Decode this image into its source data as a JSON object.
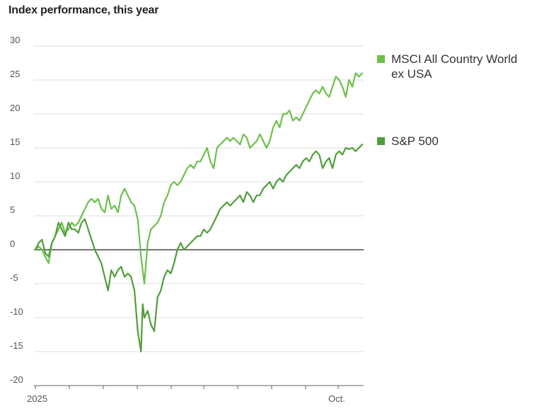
{
  "chart_data": {
    "type": "line",
    "title": "Index performance, this year",
    "xlabel": "",
    "ylabel": "",
    "ylim": [
      -20,
      30
    ],
    "yticks": [
      30,
      25,
      20,
      15,
      10,
      5,
      0,
      -5,
      -10,
      -15,
      -20
    ],
    "x_tick_labels": [
      "2025",
      "Oct."
    ],
    "grid": "horizontal",
    "legend_position": "right",
    "colors": {
      "msci": "#6cc04a",
      "sp500": "#4f9e3a",
      "zero_line": "#222222",
      "grid": "#dddddd"
    },
    "series": [
      {
        "name": "MSCI All Country World ex USA",
        "label_lines": [
          "MSCI All Country World",
          "ex USA"
        ],
        "color": "#6cc04a",
        "points": [
          [
            0,
            0
          ],
          [
            2,
            0.5
          ],
          [
            4,
            0
          ],
          [
            6,
            -1
          ],
          [
            8,
            -2
          ],
          [
            10,
            1
          ],
          [
            12,
            2
          ],
          [
            14,
            3
          ],
          [
            16,
            4
          ],
          [
            18,
            2.5
          ],
          [
            20,
            3
          ],
          [
            22,
            4
          ],
          [
            24,
            3.5
          ],
          [
            26,
            4
          ],
          [
            28,
            5
          ],
          [
            30,
            6
          ],
          [
            32,
            7
          ],
          [
            34,
            7.5
          ],
          [
            36,
            7
          ],
          [
            38,
            7.5
          ],
          [
            40,
            6
          ],
          [
            42,
            5.5
          ],
          [
            44,
            8
          ],
          [
            46,
            6
          ],
          [
            48,
            6.5
          ],
          [
            50,
            5.5
          ],
          [
            52,
            8
          ],
          [
            54,
            9
          ],
          [
            56,
            8
          ],
          [
            58,
            7
          ],
          [
            60,
            6.5
          ],
          [
            62,
            4.5
          ],
          [
            64,
            -1
          ],
          [
            65,
            -3
          ],
          [
            66,
            -5
          ],
          [
            68,
            1
          ],
          [
            70,
            3
          ],
          [
            72,
            3.5
          ],
          [
            74,
            4
          ],
          [
            76,
            5
          ],
          [
            78,
            7
          ],
          [
            80,
            8
          ],
          [
            82,
            9.5
          ],
          [
            84,
            10
          ],
          [
            86,
            9.5
          ],
          [
            88,
            10
          ],
          [
            90,
            11
          ],
          [
            92,
            12
          ],
          [
            94,
            12.5
          ],
          [
            96,
            12
          ],
          [
            98,
            13
          ],
          [
            100,
            13
          ],
          [
            102,
            14
          ],
          [
            104,
            15
          ],
          [
            106,
            13
          ],
          [
            108,
            12
          ],
          [
            110,
            15
          ],
          [
            112,
            15.5
          ],
          [
            114,
            16
          ],
          [
            116,
            16.5
          ],
          [
            118,
            16
          ],
          [
            120,
            16.5
          ],
          [
            122,
            16
          ],
          [
            124,
            15.5
          ],
          [
            126,
            17
          ],
          [
            128,
            16.5
          ],
          [
            130,
            15
          ],
          [
            132,
            15.5
          ],
          [
            134,
            16
          ],
          [
            136,
            17
          ],
          [
            138,
            16
          ],
          [
            140,
            15
          ],
          [
            142,
            16
          ],
          [
            144,
            18
          ],
          [
            146,
            19
          ],
          [
            148,
            18
          ],
          [
            150,
            20
          ],
          [
            152,
            20
          ],
          [
            154,
            20.5
          ],
          [
            156,
            19
          ],
          [
            158,
            19.5
          ],
          [
            160,
            19
          ],
          [
            162,
            20
          ],
          [
            164,
            21
          ],
          [
            166,
            22
          ],
          [
            168,
            23
          ],
          [
            170,
            23.5
          ],
          [
            172,
            23
          ],
          [
            174,
            24
          ],
          [
            176,
            23
          ],
          [
            178,
            22.5
          ],
          [
            180,
            24
          ],
          [
            182,
            25.5
          ],
          [
            184,
            25
          ],
          [
            186,
            24
          ],
          [
            188,
            22.5
          ],
          [
            190,
            25
          ],
          [
            192,
            24
          ],
          [
            194,
            26
          ],
          [
            196,
            25.5
          ],
          [
            198,
            26
          ]
        ]
      },
      {
        "name": "S&P 500",
        "label_lines": [
          "S&P 500"
        ],
        "color": "#4f9e3a",
        "points": [
          [
            0,
            0
          ],
          [
            2,
            1
          ],
          [
            4,
            1.5
          ],
          [
            6,
            -0.5
          ],
          [
            8,
            -1
          ],
          [
            10,
            1
          ],
          [
            12,
            2
          ],
          [
            14,
            4
          ],
          [
            16,
            3
          ],
          [
            18,
            2
          ],
          [
            20,
            4
          ],
          [
            22,
            3
          ],
          [
            24,
            3
          ],
          [
            26,
            2.5
          ],
          [
            28,
            4
          ],
          [
            30,
            4.5
          ],
          [
            32,
            3
          ],
          [
            34,
            1.5
          ],
          [
            36,
            0
          ],
          [
            38,
            -1
          ],
          [
            40,
            -2
          ],
          [
            42,
            -4
          ],
          [
            44,
            -6
          ],
          [
            46,
            -3
          ],
          [
            48,
            -4
          ],
          [
            50,
            -3
          ],
          [
            52,
            -2.5
          ],
          [
            54,
            -4
          ],
          [
            56,
            -3.5
          ],
          [
            58,
            -4
          ],
          [
            60,
            -6
          ],
          [
            62,
            -12
          ],
          [
            64,
            -15
          ],
          [
            65,
            -8
          ],
          [
            66,
            -10
          ],
          [
            68,
            -9
          ],
          [
            70,
            -11
          ],
          [
            72,
            -12
          ],
          [
            74,
            -7
          ],
          [
            76,
            -6
          ],
          [
            78,
            -4
          ],
          [
            80,
            -3
          ],
          [
            82,
            -3.5
          ],
          [
            84,
            -2
          ],
          [
            86,
            0
          ],
          [
            88,
            1
          ],
          [
            90,
            0
          ],
          [
            92,
            0.5
          ],
          [
            94,
            1
          ],
          [
            96,
            1.5
          ],
          [
            98,
            2
          ],
          [
            100,
            2
          ],
          [
            102,
            3
          ],
          [
            104,
            2.5
          ],
          [
            106,
            3
          ],
          [
            108,
            4
          ],
          [
            110,
            5
          ],
          [
            112,
            6
          ],
          [
            114,
            6.5
          ],
          [
            116,
            7
          ],
          [
            118,
            6.5
          ],
          [
            120,
            7
          ],
          [
            122,
            7.5
          ],
          [
            124,
            8
          ],
          [
            126,
            7
          ],
          [
            128,
            8.5
          ],
          [
            130,
            8
          ],
          [
            132,
            7
          ],
          [
            134,
            8
          ],
          [
            136,
            8
          ],
          [
            138,
            9
          ],
          [
            140,
            9.5
          ],
          [
            142,
            10
          ],
          [
            144,
            9
          ],
          [
            146,
            10
          ],
          [
            148,
            10.5
          ],
          [
            150,
            10
          ],
          [
            152,
            11
          ],
          [
            154,
            11.5
          ],
          [
            156,
            12
          ],
          [
            158,
            12.5
          ],
          [
            160,
            12
          ],
          [
            162,
            13
          ],
          [
            164,
            13.5
          ],
          [
            166,
            13
          ],
          [
            168,
            14
          ],
          [
            170,
            14.5
          ],
          [
            172,
            14
          ],
          [
            174,
            12
          ],
          [
            176,
            13
          ],
          [
            178,
            13.5
          ],
          [
            180,
            12
          ],
          [
            182,
            14
          ],
          [
            184,
            14.5
          ],
          [
            186,
            14
          ],
          [
            188,
            15
          ],
          [
            190,
            14.8
          ],
          [
            192,
            15
          ],
          [
            194,
            14.5
          ],
          [
            196,
            15
          ],
          [
            198,
            15.5
          ]
        ]
      }
    ]
  }
}
